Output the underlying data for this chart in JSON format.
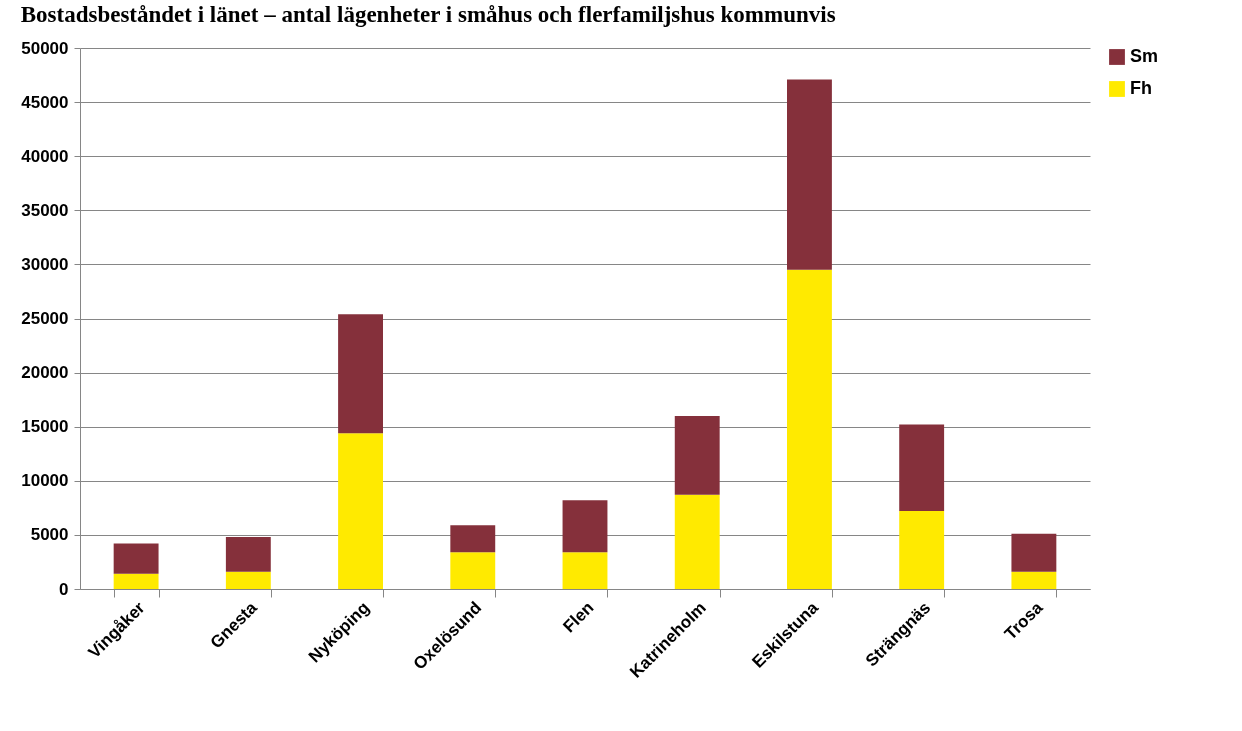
{
  "chart_data": {
    "type": "bar",
    "title": "Bostadsbeståndet i länet – antal lägenheter i småhus och flerfamiljshus kommunvis",
    "categories": [
      "Vingåker",
      "Gnesta",
      "Nyköping",
      "Oxelösund",
      "Flen",
      "Katrineholm",
      "Eskilstuna",
      "Strängnäs",
      "Trosa"
    ],
    "series": [
      {
        "name": "Fh",
        "color": "#ffea00",
        "values": [
          1400,
          1600,
          14400,
          3400,
          3400,
          8700,
          29500,
          7200,
          1600
        ]
      },
      {
        "name": "Sm",
        "color": "#85303b",
        "values": [
          2800,
          3200,
          11000,
          2500,
          4800,
          7300,
          17600,
          8000,
          3500
        ]
      }
    ],
    "stacked": true,
    "ylim": [
      0,
      50000
    ],
    "yticks": [
      0,
      5000,
      10000,
      15000,
      20000,
      25000,
      30000,
      35000,
      40000,
      45000,
      50000
    ],
    "grid": "y",
    "legend": "right"
  }
}
